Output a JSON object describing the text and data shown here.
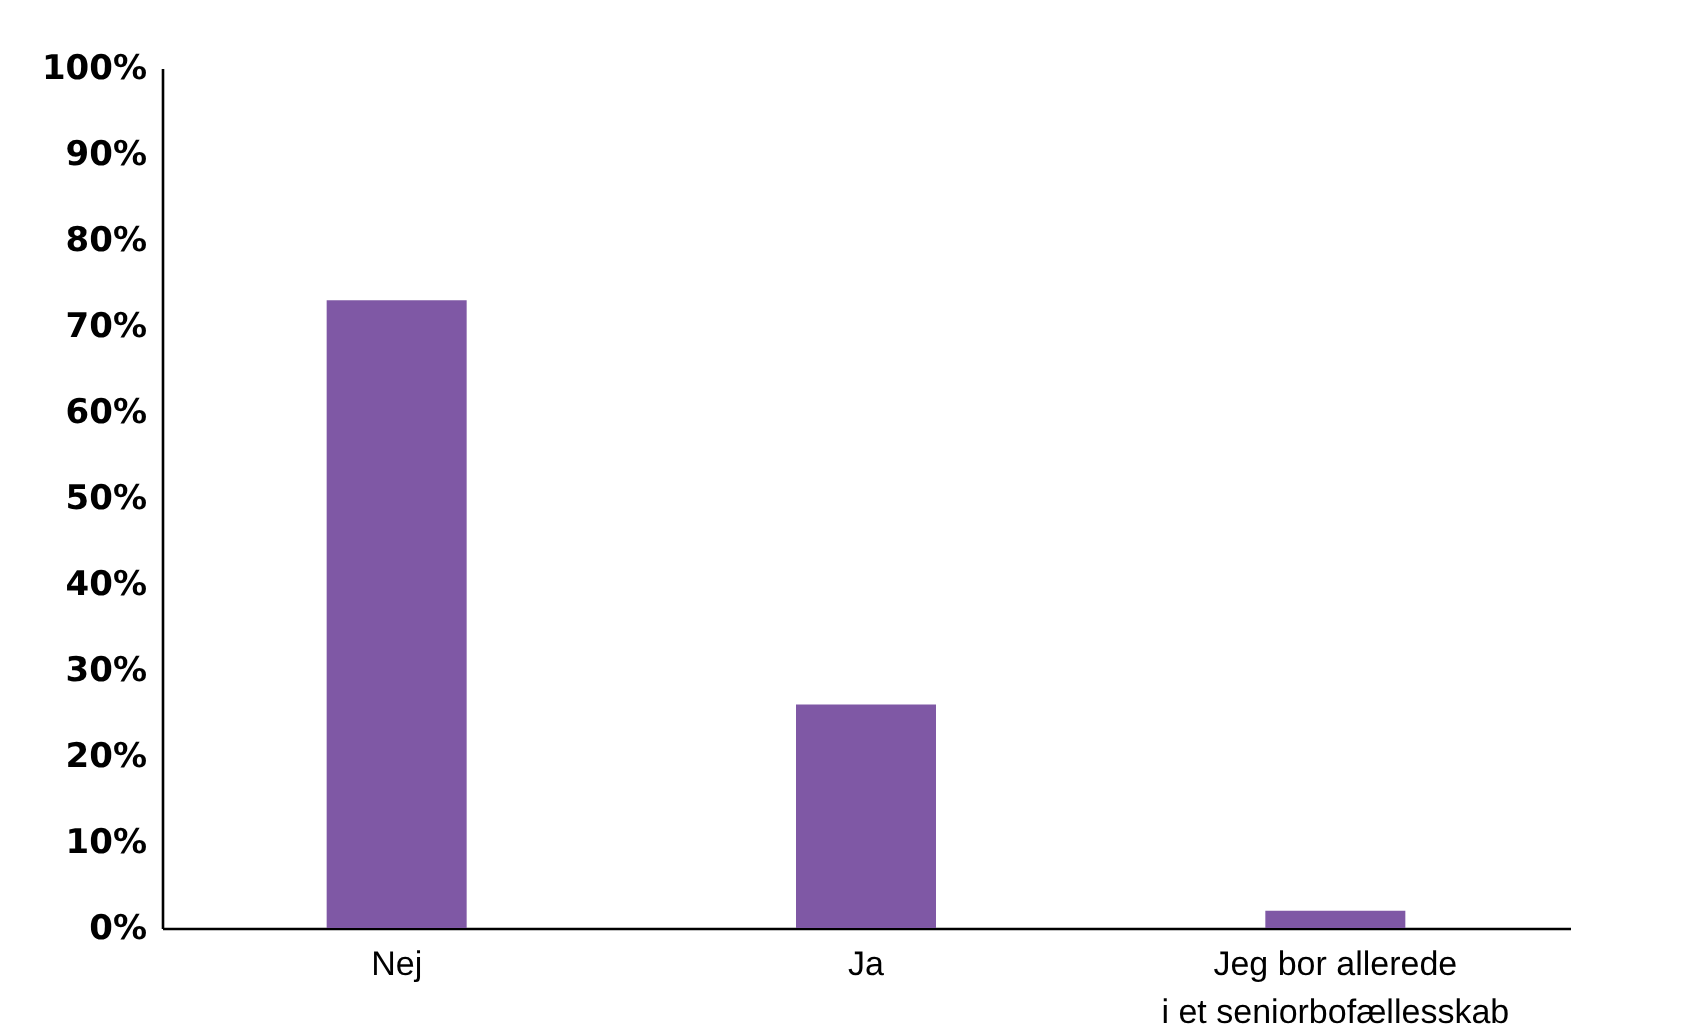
{
  "chart_data": {
    "type": "bar",
    "categories": [
      "Nej",
      "Ja",
      "Jeg bor allerede\ni et seniorbofællesskab"
    ],
    "values": [
      73,
      26,
      2
    ],
    "color": "#7f58a5",
    "ylim": [
      0,
      100
    ],
    "yticks": [
      {
        "value": 0,
        "label": "0%"
      },
      {
        "value": 10,
        "label": "10%"
      },
      {
        "value": 20,
        "label": "20%"
      },
      {
        "value": 30,
        "label": "30%"
      },
      {
        "value": 40,
        "label": "40%"
      },
      {
        "value": 50,
        "label": "50%"
      },
      {
        "value": 60,
        "label": "60%"
      },
      {
        "value": 70,
        "label": "70%"
      },
      {
        "value": 80,
        "label": "80%"
      },
      {
        "value": 90,
        "label": "90%"
      },
      {
        "value": 100,
        "label": "100%"
      }
    ],
    "grid": false
  }
}
